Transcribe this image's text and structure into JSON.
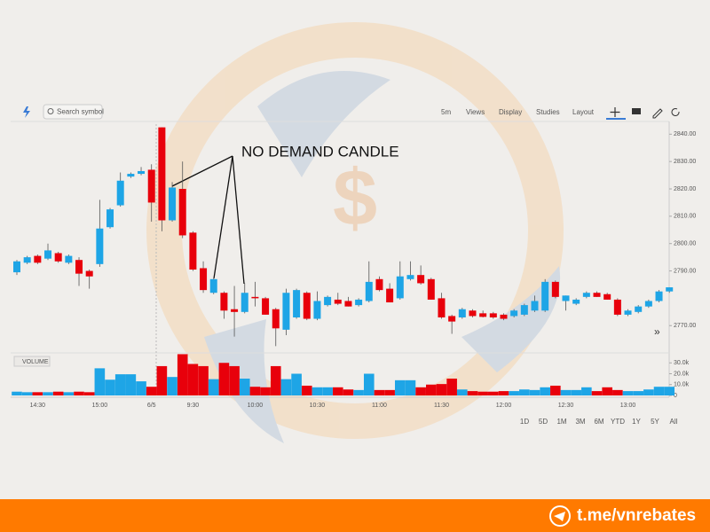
{
  "toolbar": {
    "search": "Search symbol",
    "interval": "5m",
    "menus": [
      "Views",
      "Display",
      "Studies",
      "Layout"
    ]
  },
  "annotation": "NO DEMAND CANDLE",
  "range_buttons": [
    "1D",
    "5D",
    "1M",
    "3M",
    "6M",
    "YTD",
    "1Y",
    "5Y",
    "All"
  ],
  "footer": "t.me/vnrebates",
  "chart_data": {
    "type": "candlestick",
    "categories": [
      null,
      null,
      "14:30",
      null,
      null,
      null,
      null,
      null,
      "15:00",
      null,
      null,
      null,
      null,
      "6/5",
      null,
      null,
      null,
      "9:30",
      null,
      null,
      null,
      null,
      null,
      "10:00",
      null,
      null,
      null,
      null,
      null,
      "10:30",
      null,
      null,
      null,
      null,
      null,
      "11:00",
      null,
      null,
      null,
      null,
      null,
      "11:30",
      null,
      null,
      null,
      null,
      null,
      "12:00",
      null,
      null,
      null,
      null,
      null,
      "12:30",
      null,
      null,
      null,
      null,
      null,
      "13:00",
      null,
      null,
      null,
      null
    ],
    "open": [
      2789.5,
      2793,
      2795.5,
      2794.5,
      2796.5,
      2793,
      2794,
      2790,
      2792.5,
      2806,
      2814,
      2824.5,
      2825.5,
      2827,
      2842.5,
      2808.5,
      2820,
      2804,
      2791,
      2782,
      2782,
      2776,
      2775,
      2780.5,
      2780,
      2776,
      2768.5,
      2773,
      2782,
      2772.5,
      2777.5,
      2779.5,
      2779,
      2777.5,
      2779,
      2787,
      2783.5,
      2780,
      2787,
      2788.5,
      2787,
      2780,
      2773.5,
      2773,
      2775.5,
      2774.5,
      2774.5,
      2774,
      2773.5,
      2774,
      2775.5,
      2775.5,
      2786,
      2779,
      2778,
      2780.5,
      2782,
      2781.5,
      2779.5,
      2774,
      2775,
      2777,
      2779,
      2782.5
    ],
    "high": [
      2794,
      2795.5,
      2796,
      2800,
      2797,
      2796,
      2795,
      2790.5,
      2816,
      2813,
      2826,
      2826,
      2828,
      2829,
      2842.5,
      2822.5,
      2830,
      2804.5,
      2793.5,
      2787.5,
      2782.5,
      2784.5,
      2785.5,
      2786,
      2780.5,
      2776.5,
      2783.5,
      2783.5,
      2782.5,
      2782.5,
      2781,
      2782,
      2780.5,
      2780,
      2793.5,
      2788,
      2785.5,
      2793.5,
      2793.5,
      2792,
      2787.5,
      2782,
      2774,
      2776.5,
      2776,
      2775.5,
      2775,
      2774.5,
      2776,
      2778,
      2781,
      2787,
      2786.5,
      2781,
      2780,
      2782.5,
      2782.5,
      2782,
      2780,
      2776,
      2777.5,
      2779.5,
      2783,
      2784
    ],
    "low": [
      2788.5,
      2792.5,
      2792.5,
      2794,
      2793,
      2792.5,
      2784.5,
      2783.5,
      2791.5,
      2805.5,
      2813.5,
      2824,
      2825,
      2808,
      2804.5,
      2808,
      2802,
      2790,
      2782,
      2781.5,
      2772.5,
      2766,
      2774.5,
      2777,
      2774,
      2762.5,
      2766.5,
      2772.5,
      2772,
      2772,
      2777,
      2777.5,
      2777,
      2777,
      2778.5,
      2782.5,
      2778.5,
      2779.5,
      2786.5,
      2785,
      2779.5,
      2772.5,
      2767,
      2772.5,
      2773,
      2773,
      2772.5,
      2772,
      2773,
      2773.5,
      2775,
      2775,
      2780,
      2775.5,
      2777.5,
      2780,
      2780.5,
      2779.5,
      2773.5,
      2773.5,
      2774.5,
      2776.5,
      2778.5,
      2782
    ],
    "close": [
      2793.5,
      2795,
      2793,
      2797.5,
      2793.5,
      2795.5,
      2789,
      2788,
      2805.5,
      2812.5,
      2823,
      2825.5,
      2826.5,
      2815,
      2808.5,
      2820.5,
      2803,
      2790.5,
      2783,
      2787,
      2775.5,
      2775,
      2782,
      2780,
      2774,
      2769,
      2782,
      2783,
      2772.5,
      2779,
      2780.5,
      2778,
      2777,
      2779.5,
      2786,
      2783,
      2778.5,
      2788,
      2788.5,
      2785.5,
      2779.5,
      2773,
      2771.5,
      2776,
      2773.5,
      2773.2,
      2773,
      2772.5,
      2775.5,
      2777.5,
      2779,
      2786,
      2780.5,
      2781,
      2779.5,
      2782,
      2780.5,
      2779.5,
      2774,
      2775.5,
      2777,
      2779,
      2782.5,
      2784
    ],
    "volume": [
      3500,
      3000,
      3000,
      3000,
      3500,
      3000,
      3500,
      3000,
      25000,
      14500,
      19500,
      19500,
      13000,
      8000,
      27000,
      17000,
      38000,
      29000,
      27000,
      15000,
      30000,
      27000,
      15500,
      8000,
      7500,
      27000,
      15000,
      20000,
      9000,
      7500,
      7500,
      7500,
      5500,
      5000,
      20000,
      5000,
      5000,
      14000,
      14000,
      7500,
      10000,
      10500,
      15500,
      5500,
      4000,
      3500,
      3500,
      4000,
      4000,
      5500,
      5000,
      7500,
      9000,
      5000,
      5000,
      7500,
      4000,
      7500,
      5000,
      4000,
      4000,
      5500,
      8000,
      8000
    ],
    "up_color": "#1ea5e6",
    "down_color": "#e8000b",
    "volume_label": "VOLUME",
    "ylim": [
      2761,
      2844
    ],
    "yticks": [
      {
        "value": 2770,
        "label": "2770.00"
      },
      {
        "value": 2790,
        "label": "2790.00"
      },
      {
        "value": 2800,
        "label": "2800.00"
      },
      {
        "value": 2810,
        "label": "2810.00"
      },
      {
        "value": 2820,
        "label": "2820.00"
      },
      {
        "value": 2830,
        "label": "2830.00"
      },
      {
        "value": 2840,
        "label": "2840.00"
      }
    ],
    "y2lim": [
      0,
      40000
    ],
    "y2ticks": [
      0,
      {
        "value": 10000,
        "label": "10.0k"
      },
      {
        "value": 20000,
        "label": "20.0k"
      },
      {
        "value": 30000,
        "label": "30.0k"
      }
    ],
    "grid": false
  }
}
